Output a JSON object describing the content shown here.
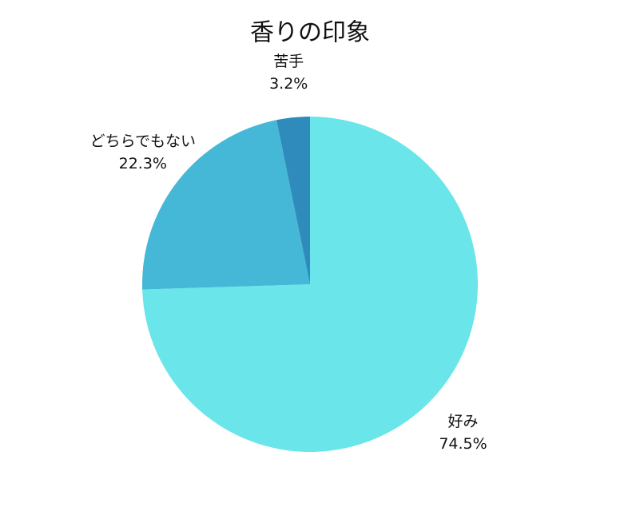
{
  "chart_data": {
    "type": "pie",
    "title": "香りの印象",
    "categories": [
      "好み",
      "どちらでもない",
      "苦手"
    ],
    "values": [
      74.5,
      22.3,
      3.2
    ],
    "value_labels": [
      "74.5%",
      "22.3%",
      "3.2%"
    ],
    "colors": [
      "#6ae5e9",
      "#44b8d6",
      "#2e8bbb"
    ]
  }
}
